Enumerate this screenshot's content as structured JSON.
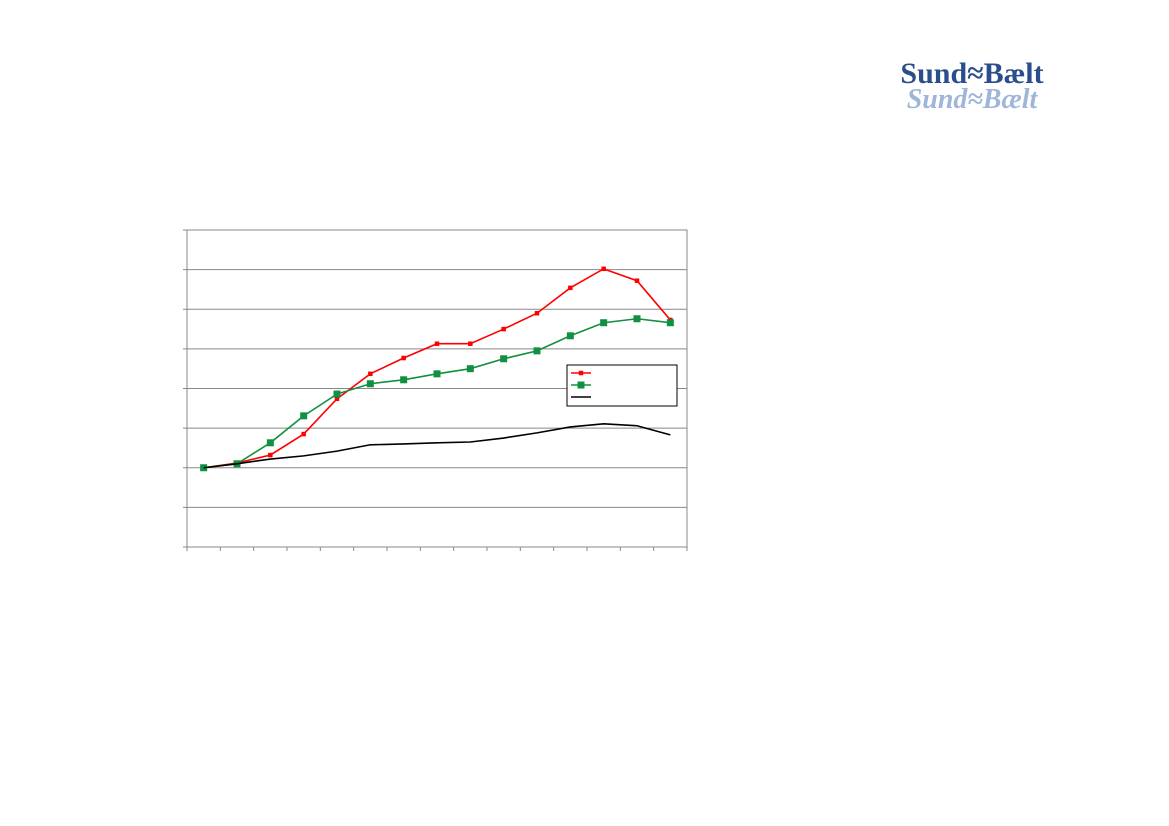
{
  "logo": {
    "primary": "Sund≈Bælt",
    "secondary": "Sund≈Bælt"
  },
  "chart_data": {
    "type": "line",
    "categories": [
      null,
      null,
      null,
      null,
      null,
      null,
      null,
      null,
      null,
      null,
      null,
      null,
      null,
      null,
      null
    ],
    "ylim": [
      0,
      8
    ],
    "yticks": [
      0,
      1,
      2,
      3,
      4,
      5,
      6,
      7,
      8
    ],
    "grid": true,
    "series": [
      {
        "color": "#ff0000",
        "marker": "small-square",
        "values": [
          2.0,
          2.12,
          2.32,
          2.85,
          3.74,
          4.37,
          4.77,
          5.13,
          5.13,
          5.5,
          5.9,
          6.54,
          7.02,
          6.72,
          5.73
        ]
      },
      {
        "color": "#109040",
        "marker": "square",
        "values": [
          2.0,
          2.1,
          2.63,
          3.31,
          3.86,
          4.12,
          4.22,
          4.37,
          4.5,
          4.75,
          4.95,
          5.33,
          5.66,
          5.76,
          5.66
        ]
      },
      {
        "color": "#000000",
        "marker": "none",
        "values": [
          2.0,
          2.1,
          2.22,
          2.3,
          2.42,
          2.58,
          2.6,
          2.63,
          2.65,
          2.75,
          2.88,
          3.03,
          3.11,
          3.06,
          2.83
        ]
      }
    ]
  }
}
